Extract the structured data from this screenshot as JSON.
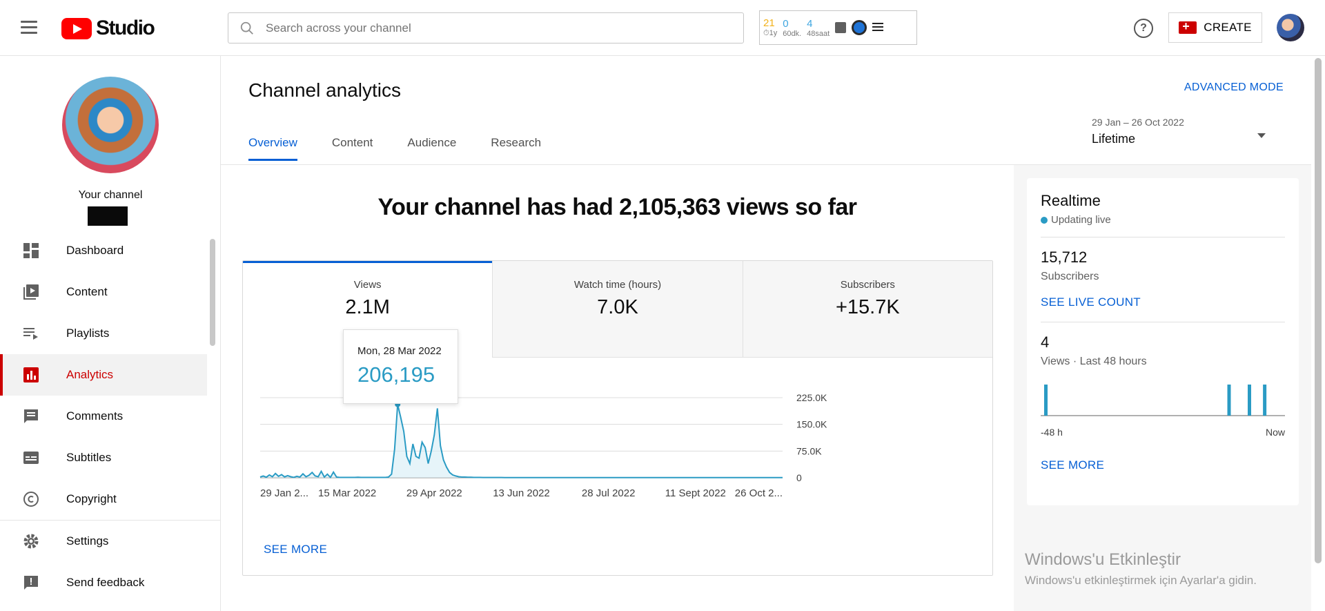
{
  "header": {
    "logo_text": "Studio",
    "search_placeholder": "Search across your channel",
    "extension": {
      "stats": [
        {
          "value": "21",
          "label": "⏱1y",
          "color": "#f2b21b"
        },
        {
          "value": "0",
          "label": "60dk.",
          "color": "#3ea6e0"
        },
        {
          "value": "4",
          "label": "48saat",
          "color": "#3ea6e0"
        }
      ]
    },
    "help_glyph": "?",
    "create_label": "CREATE"
  },
  "sidebar": {
    "channel_label": "Your channel",
    "items": [
      {
        "label": "Dashboard",
        "icon": "dashboard-icon"
      },
      {
        "label": "Content",
        "icon": "content-icon"
      },
      {
        "label": "Playlists",
        "icon": "playlists-icon"
      },
      {
        "label": "Analytics",
        "icon": "analytics-icon",
        "active": true
      },
      {
        "label": "Comments",
        "icon": "comments-icon"
      },
      {
        "label": "Subtitles",
        "icon": "subtitles-icon"
      },
      {
        "label": "Copyright",
        "icon": "copyright-icon"
      }
    ],
    "bottom_items": [
      {
        "label": "Settings",
        "icon": "gear-icon"
      },
      {
        "label": "Send feedback",
        "icon": "feedback-icon"
      }
    ]
  },
  "main": {
    "title": "Channel analytics",
    "advanced_mode": "ADVANCED MODE",
    "tabs": [
      {
        "label": "Overview",
        "active": true
      },
      {
        "label": "Content"
      },
      {
        "label": "Audience"
      },
      {
        "label": "Research"
      }
    ],
    "date_range": {
      "dates": "29 Jan – 26 Oct 2022",
      "period": "Lifetime"
    },
    "headline": "Your channel has had 2,105,363 views so far",
    "metrics": [
      {
        "label": "Views",
        "value": "2.1M",
        "active": true
      },
      {
        "label": "Watch time (hours)",
        "value": "7.0K"
      },
      {
        "label": "Subscribers",
        "value": "+15.7K"
      }
    ],
    "tooltip": {
      "date": "Mon, 28 Mar 2022",
      "value": "206,195"
    },
    "see_more": "SEE MORE"
  },
  "chart_data": {
    "type": "line",
    "x_tick_labels": [
      "29 Jan 2...",
      "15 Mar 2022",
      "29 Apr 2022",
      "13 Jun 2022",
      "28 Jul 2022",
      "11 Sept 2022",
      "26 Oct 2..."
    ],
    "y_tick_labels": [
      "225.0K",
      "150.0K",
      "75.0K",
      "0"
    ],
    "ylim": [
      0,
      225000
    ],
    "series_color": "#2a9bc4",
    "grid": true,
    "series": [
      {
        "values": [
          2000,
          5000,
          1500,
          8000,
          3000,
          12000,
          4000,
          9000,
          2500,
          6000,
          3000,
          1000,
          4000,
          2000,
          11000,
          3000,
          7000,
          15000,
          5000,
          3000,
          18000,
          2000,
          10000,
          1000,
          16000,
          2000,
          1000,
          1000,
          1000,
          1000,
          1000,
          1000,
          1500,
          1000,
          1000,
          1000,
          1000,
          1000,
          1000,
          1000,
          1000,
          1000,
          2000,
          10000,
          80000,
          206195,
          170000,
          130000,
          60000,
          40000,
          95000,
          60000,
          55000,
          100000,
          85000,
          40000,
          75000,
          120000,
          195000,
          90000,
          50000,
          30000,
          15000,
          8000,
          5000,
          3000,
          2000,
          2000,
          1500,
          1500,
          1000,
          1000,
          1000,
          800,
          800,
          800,
          800,
          700,
          700,
          700,
          600,
          600,
          600,
          500,
          500,
          500,
          500,
          500,
          400,
          400,
          400,
          400,
          400,
          400,
          400,
          400,
          400,
          400,
          300,
          300,
          300,
          300,
          300,
          300,
          300,
          300,
          300,
          300,
          300,
          300,
          300,
          300,
          300,
          300,
          300,
          300,
          300,
          300,
          300,
          300,
          300,
          300,
          300,
          300,
          300,
          300,
          300,
          300,
          300,
          300,
          300,
          300,
          300,
          300,
          300,
          300,
          300,
          300,
          300,
          300,
          300,
          300,
          300,
          300,
          300,
          300,
          300,
          300,
          300,
          300,
          300,
          300,
          300,
          300,
          300,
          300,
          300,
          300,
          300,
          300,
          300,
          300,
          300,
          300,
          300,
          300,
          300,
          300,
          300,
          300,
          300,
          300
        ],
        "highlight_index": 45
      }
    ]
  },
  "realtime": {
    "title": "Realtime",
    "status": "Updating live",
    "subscribers_value": "15,712",
    "subscribers_label": "Subscribers",
    "live_count_link": "SEE LIVE COUNT",
    "views_value": "4",
    "views_label": "Views · Last 48 hours",
    "bars_views": [
      1,
      0,
      0,
      0,
      0,
      0,
      0,
      0,
      0,
      0,
      0,
      0,
      0,
      0,
      0,
      0,
      0,
      0,
      0,
      0,
      0,
      0,
      0,
      0,
      0,
      0,
      0,
      0,
      0,
      0,
      0,
      0,
      0,
      0,
      0,
      0,
      1,
      0,
      0,
      0,
      1,
      0,
      0,
      1,
      0,
      0,
      0,
      0
    ],
    "axis_start": "-48 h",
    "axis_end": "Now",
    "see_more": "SEE MORE"
  },
  "watermark": {
    "line1": "Windows'u Etkinleştir",
    "line2": "Windows'u etkinleştirmek için Ayarlar'a gidin."
  }
}
